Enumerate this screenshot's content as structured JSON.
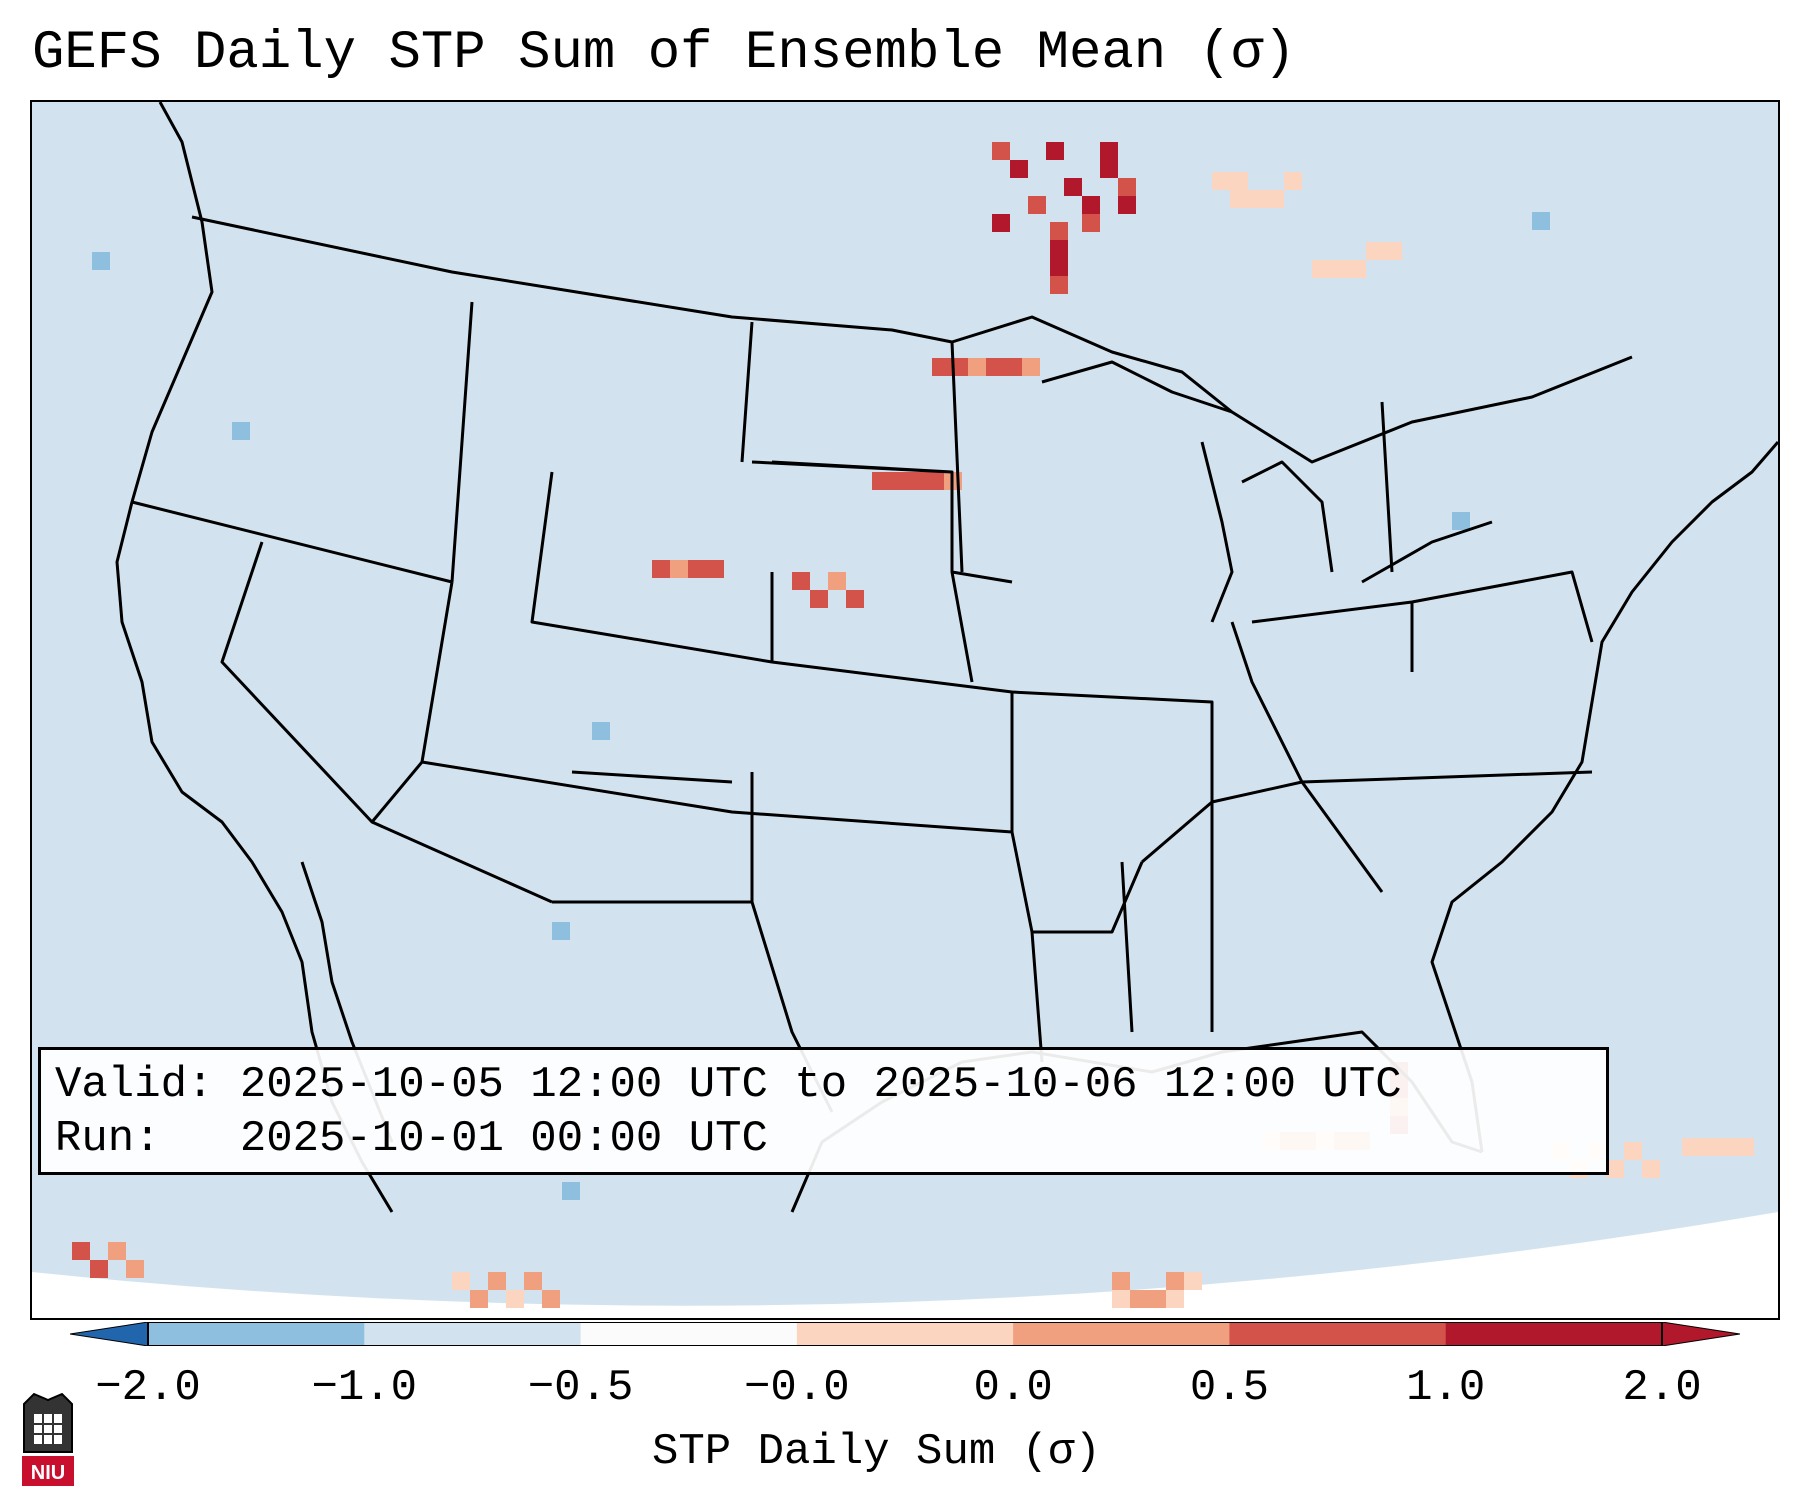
{
  "title": "GEFS Daily STP Sum of Ensemble Mean (σ)",
  "info": {
    "valid_label": "Valid:",
    "valid_value": "2025-10-05 12:00 UTC to 2025-10-06 12:00 UTC",
    "run_label": "Run:",
    "run_value": "2025-10-01 00:00 UTC"
  },
  "colorbar": {
    "label": "STP Daily Sum (σ)",
    "ticks": [
      "−2.0",
      "−1.0",
      "−0.5",
      "−0.0",
      "0.0",
      "0.5",
      "1.0",
      "2.0"
    ],
    "colors": [
      "#3b7dbd",
      "#8fbfdf",
      "#d2e3ef",
      "#fbfbfb",
      "#fcd5c0",
      "#f0a07f",
      "#d3524a",
      "#b2182b"
    ]
  },
  "logo_text": "NIU",
  "colors": {
    "ocean": "#d2e3ef",
    "high": "#b2182b",
    "mid": "#d3524a",
    "low": "#f0a07f",
    "faint": "#fcd5c0"
  }
}
